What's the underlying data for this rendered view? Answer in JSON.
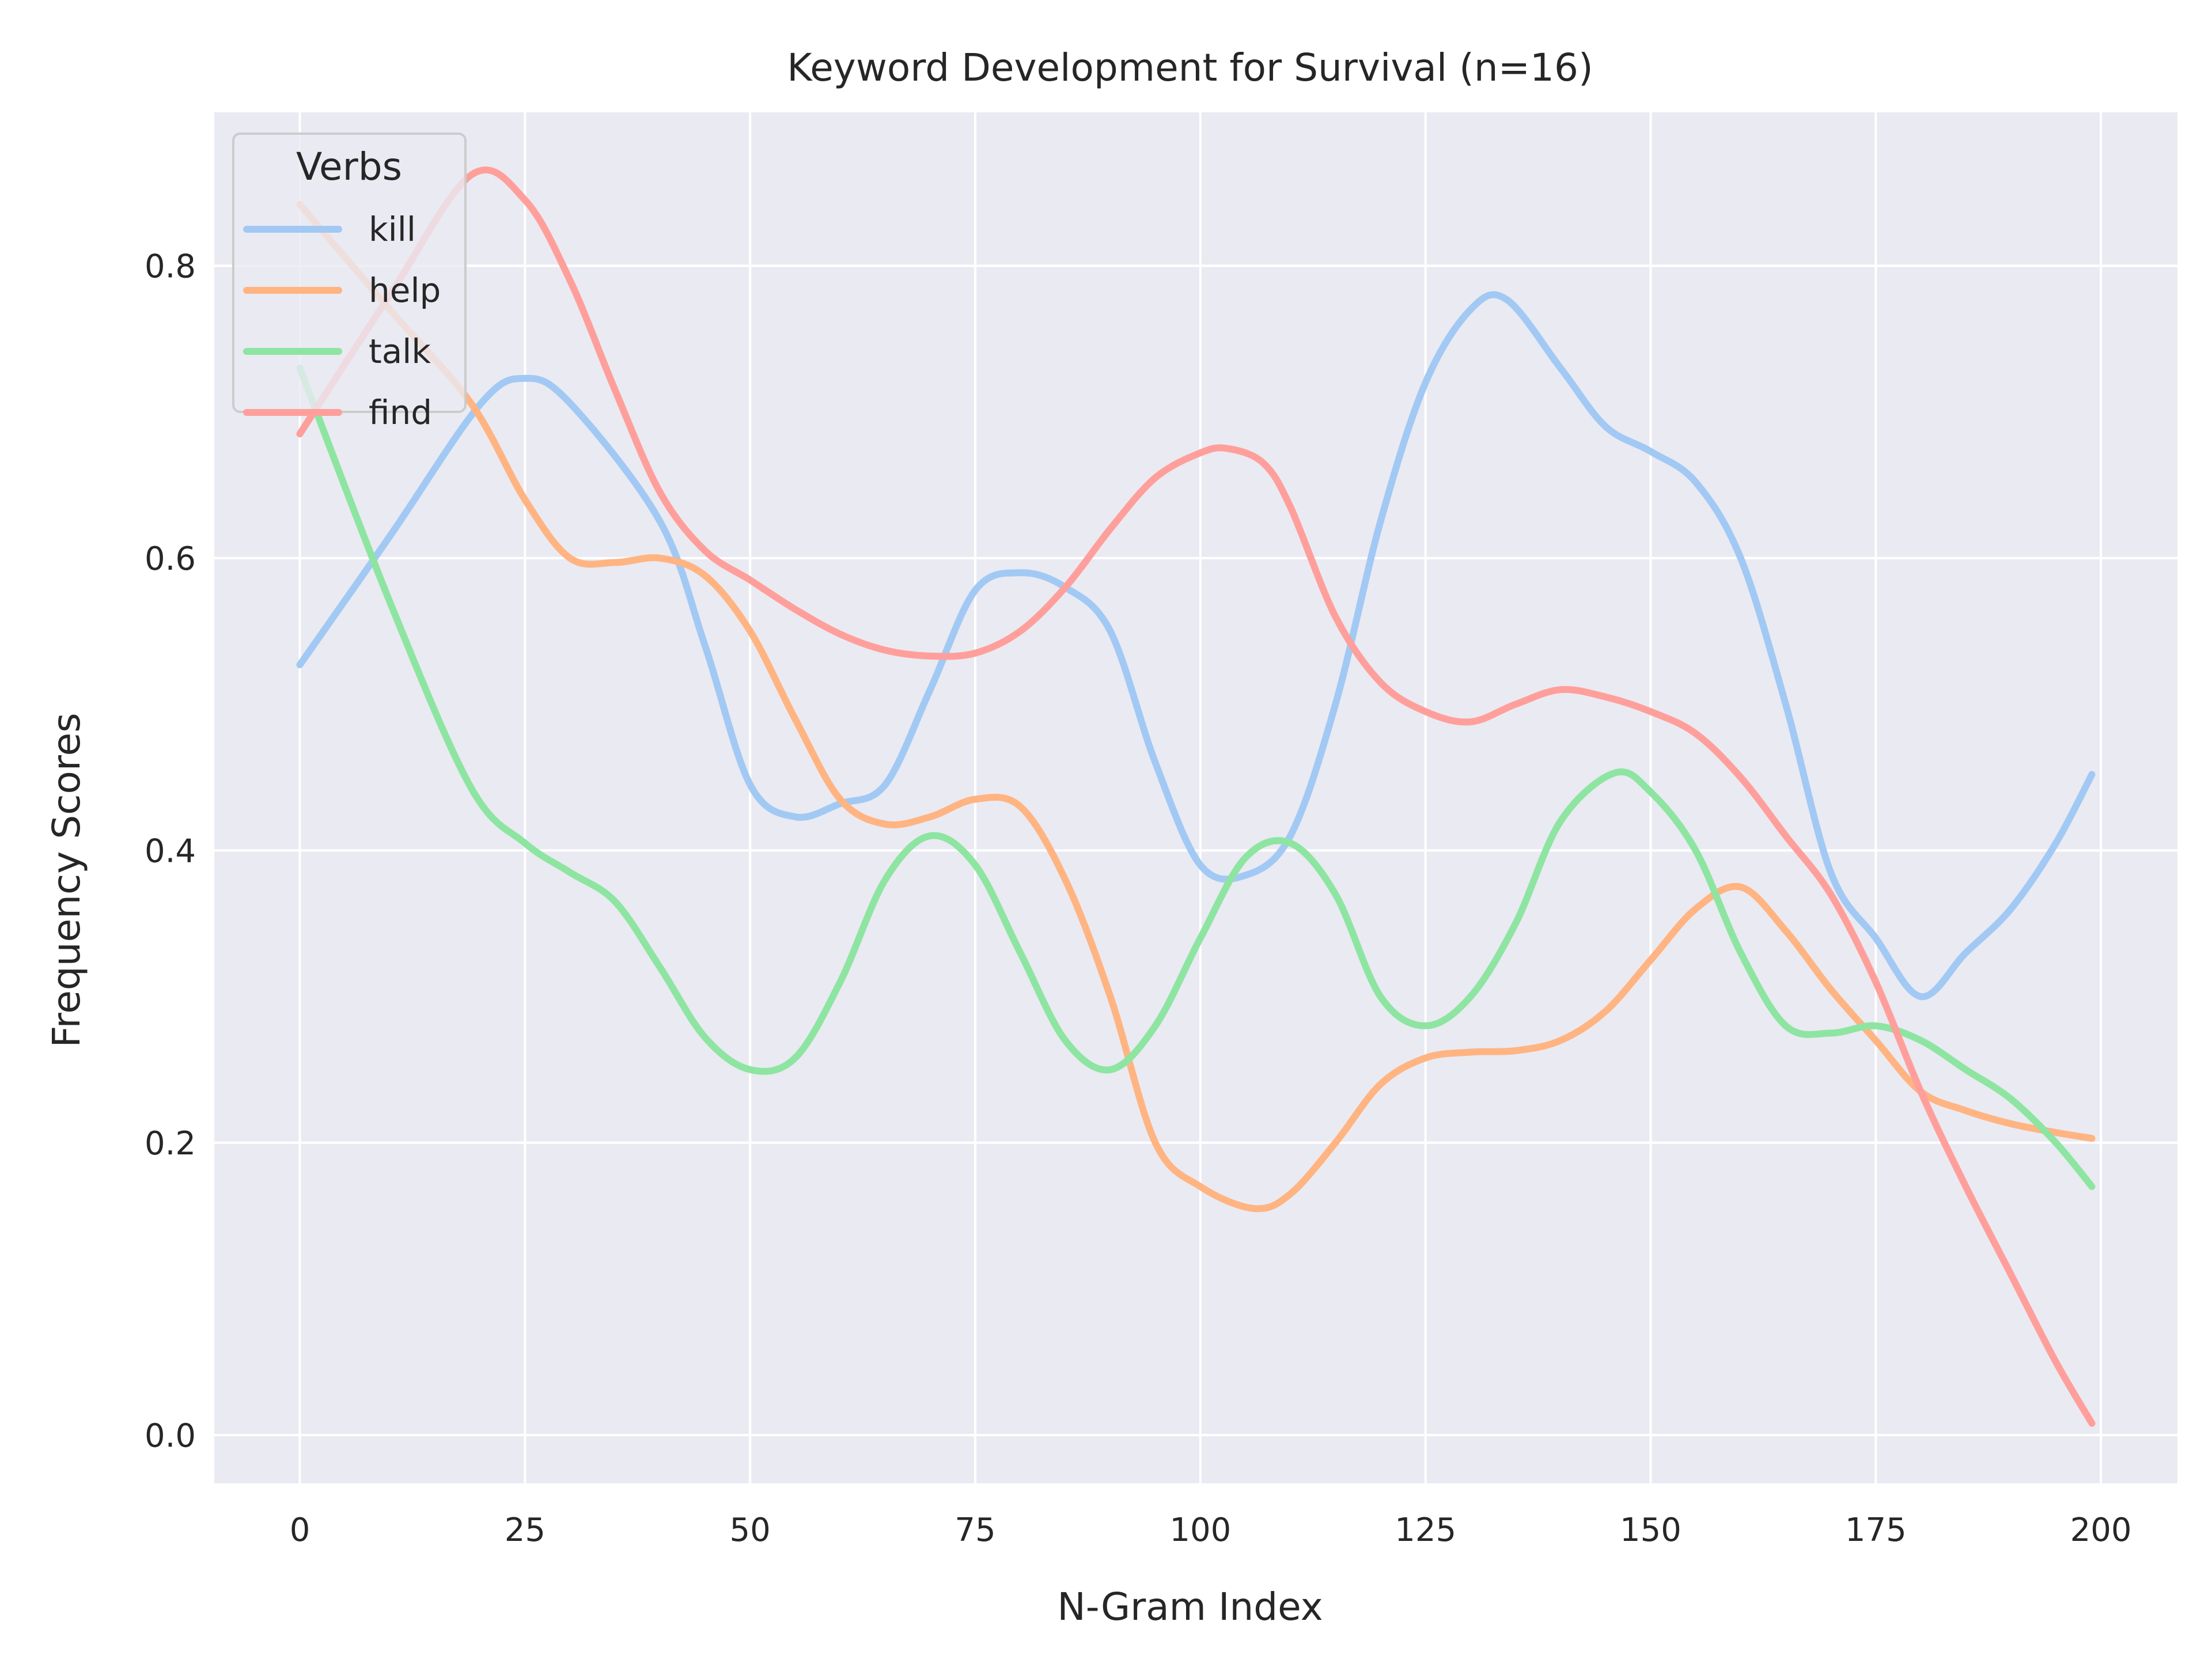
{
  "chart_data": {
    "type": "line",
    "title": "Keyword Development for Survival (n=16)",
    "xlabel": "N-Gram Index",
    "ylabel": "Frequency Scores",
    "xlim": [
      -9.5,
      208.5
    ],
    "ylim": [
      -0.033,
      0.905
    ],
    "xticks": [
      0,
      25,
      50,
      75,
      100,
      125,
      150,
      175,
      200
    ],
    "yticks": [
      0.0,
      0.2,
      0.4,
      0.6,
      0.8
    ],
    "ytick_labels": [
      "0.0",
      "0.2",
      "0.4",
      "0.6",
      "0.8"
    ],
    "grid": true,
    "legend": {
      "title": "Verbs",
      "placement": "top-left"
    },
    "series": [
      {
        "name": "kill",
        "color": "#a1c9f4",
        "x": [
          0,
          10,
          20,
          25,
          30,
          40,
          45,
          50,
          55,
          60,
          65,
          70,
          75,
          80,
          85,
          90,
          95,
          100,
          105,
          110,
          115,
          120,
          125,
          130,
          134,
          140,
          145,
          150,
          155,
          160,
          165,
          170,
          175,
          180,
          185,
          190,
          195,
          199
        ],
        "y": [
          0.527,
          0.615,
          0.705,
          0.723,
          0.706,
          0.625,
          0.54,
          0.445,
          0.423,
          0.432,
          0.445,
          0.51,
          0.578,
          0.59,
          0.58,
          0.55,
          0.46,
          0.39,
          0.383,
          0.41,
          0.5,
          0.625,
          0.72,
          0.77,
          0.777,
          0.73,
          0.69,
          0.673,
          0.652,
          0.6,
          0.5,
          0.385,
          0.34,
          0.3,
          0.33,
          0.36,
          0.405,
          0.452
        ]
      },
      {
        "name": "help",
        "color": "#ffb482",
        "x": [
          0,
          10,
          19,
          25,
          30,
          35,
          40,
          45,
          50,
          55,
          60,
          65,
          70,
          75,
          80,
          85,
          90,
          95,
          100,
          106,
          110,
          115,
          120,
          125,
          130,
          135,
          140,
          145,
          150,
          155,
          160,
          165,
          170,
          175,
          180,
          185,
          190,
          195,
          199
        ],
        "y": [
          0.842,
          0.77,
          0.706,
          0.64,
          0.6,
          0.597,
          0.6,
          0.588,
          0.55,
          0.49,
          0.435,
          0.418,
          0.423,
          0.435,
          0.43,
          0.38,
          0.3,
          0.2,
          0.17,
          0.155,
          0.165,
          0.2,
          0.24,
          0.258,
          0.262,
          0.263,
          0.27,
          0.29,
          0.325,
          0.36,
          0.375,
          0.345,
          0.305,
          0.27,
          0.235,
          0.222,
          0.213,
          0.207,
          0.203
        ]
      },
      {
        "name": "talk",
        "color": "#8de5a1",
        "x": [
          0,
          10,
          19,
          25,
          30,
          35,
          40,
          45,
          50,
          55,
          60,
          65,
          70,
          75,
          80,
          85,
          90,
          95,
          100,
          105,
          110,
          115,
          120,
          125,
          130,
          135,
          140,
          146,
          150,
          155,
          160,
          165,
          170,
          175,
          180,
          185,
          190,
          195,
          199
        ],
        "y": [
          0.73,
          0.57,
          0.443,
          0.405,
          0.385,
          0.365,
          0.32,
          0.272,
          0.25,
          0.258,
          0.31,
          0.38,
          0.41,
          0.39,
          0.33,
          0.27,
          0.25,
          0.28,
          0.34,
          0.395,
          0.405,
          0.37,
          0.3,
          0.28,
          0.3,
          0.35,
          0.42,
          0.453,
          0.44,
          0.4,
          0.33,
          0.28,
          0.275,
          0.28,
          0.27,
          0.25,
          0.23,
          0.2,
          0.17
        ]
      },
      {
        "name": "find",
        "color": "#ff9f9b",
        "x": [
          0,
          10,
          19,
          25,
          30,
          35,
          40,
          45,
          50,
          55,
          60,
          65,
          70,
          75,
          80,
          85,
          90,
          95,
          100,
          103,
          107,
          110,
          115,
          120,
          125,
          130,
          135,
          140,
          145,
          150,
          155,
          160,
          165,
          170,
          175,
          180,
          185,
          190,
          195,
          199
        ],
        "y": [
          0.685,
          0.78,
          0.862,
          0.845,
          0.79,
          0.715,
          0.645,
          0.605,
          0.585,
          0.565,
          0.548,
          0.537,
          0.533,
          0.535,
          0.55,
          0.58,
          0.62,
          0.655,
          0.672,
          0.675,
          0.665,
          0.635,
          0.56,
          0.515,
          0.495,
          0.488,
          0.5,
          0.51,
          0.505,
          0.495,
          0.48,
          0.45,
          0.41,
          0.37,
          0.31,
          0.235,
          0.17,
          0.11,
          0.05,
          0.008
        ]
      }
    ]
  }
}
